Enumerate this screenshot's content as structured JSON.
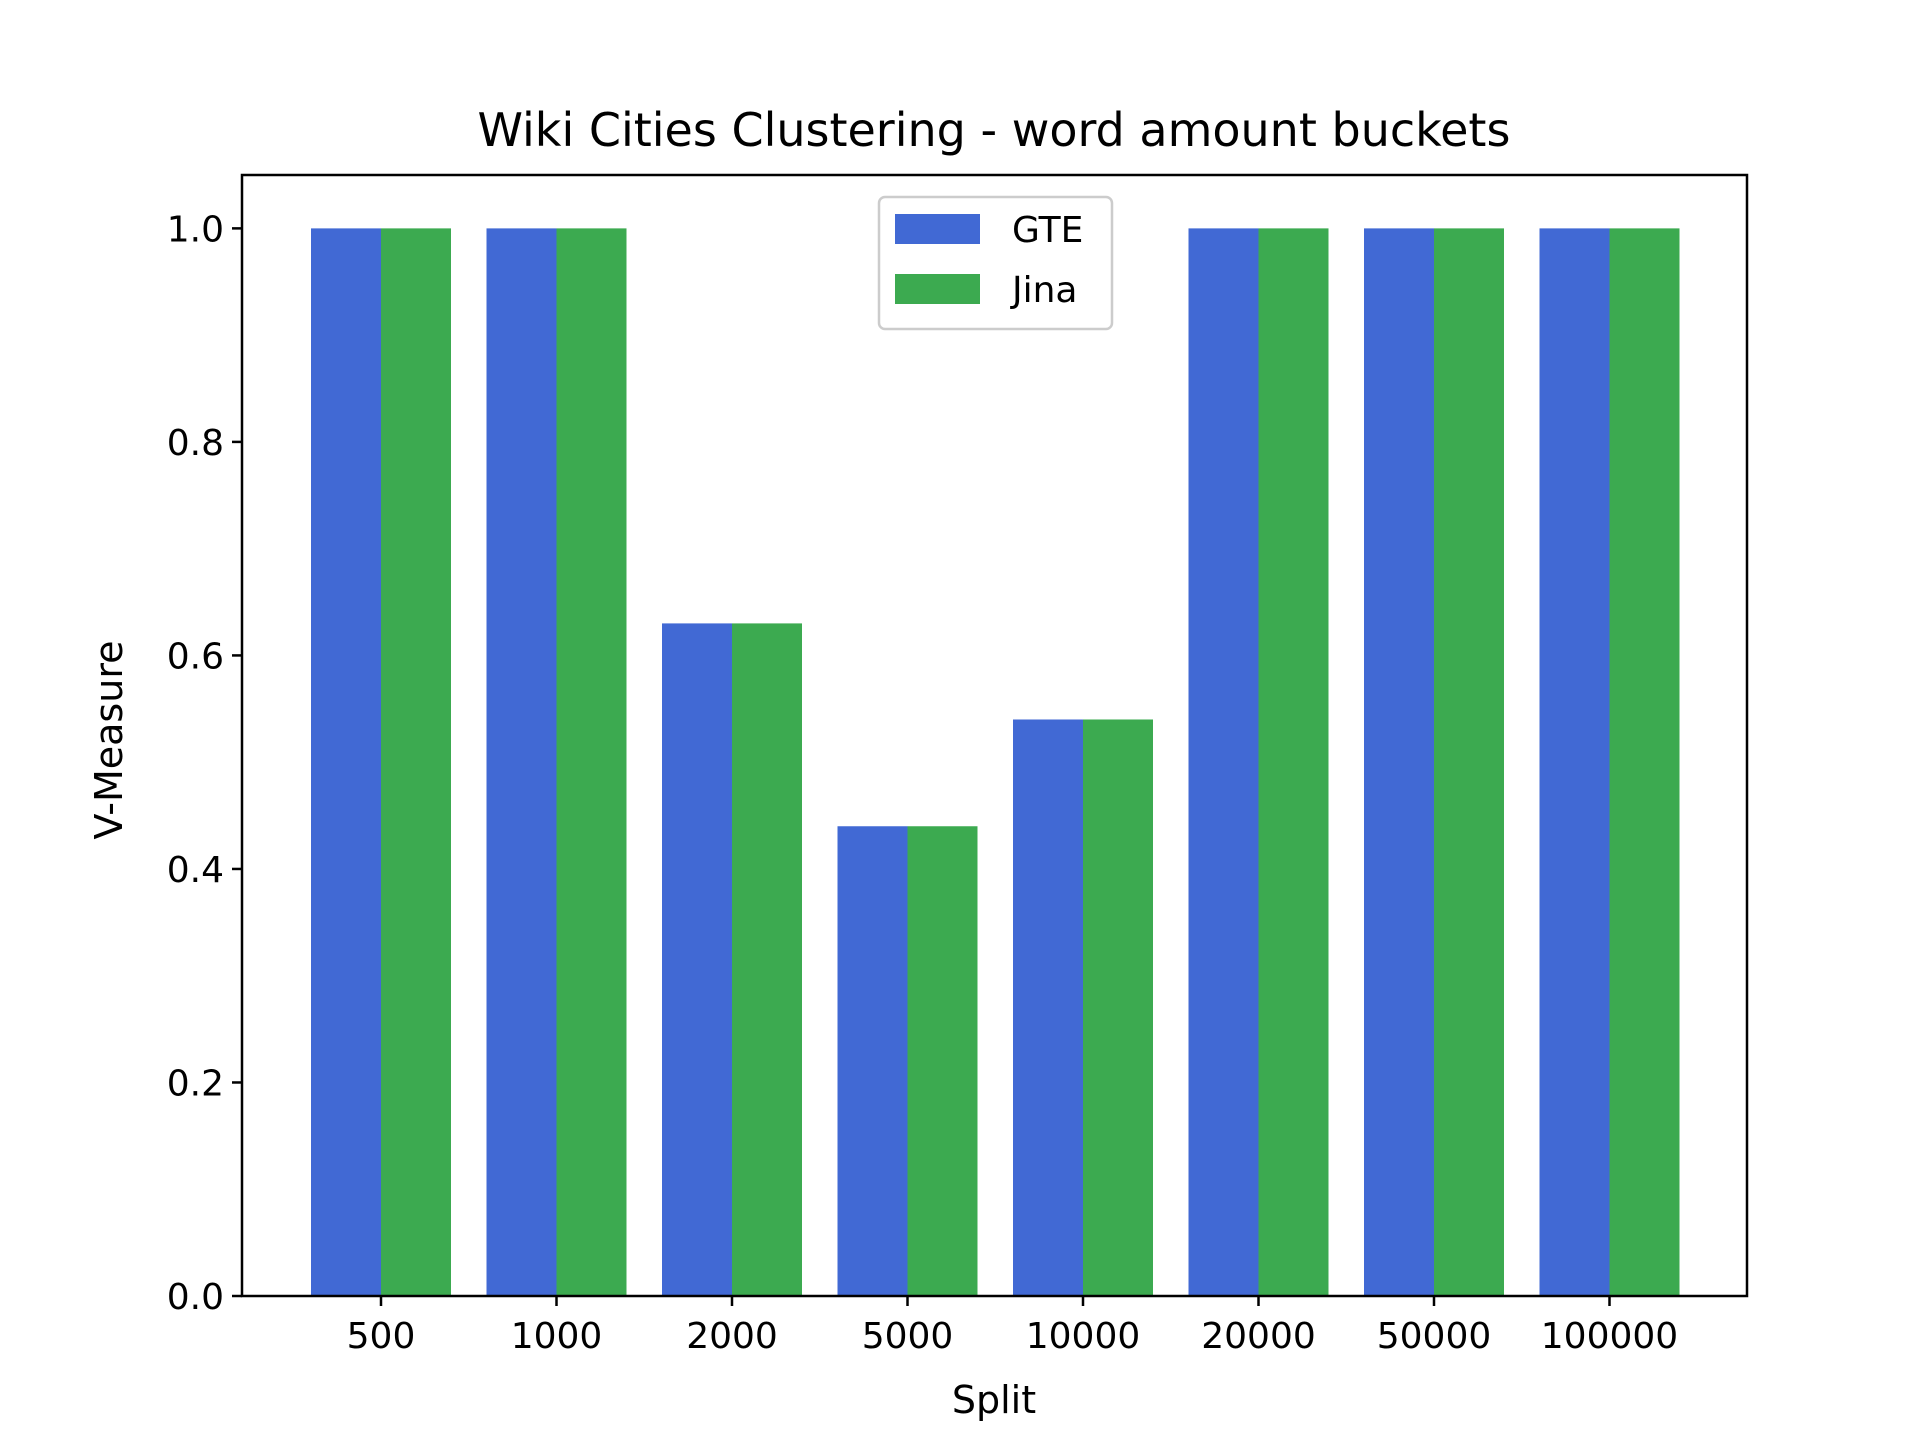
{
  "chart_data": {
    "type": "bar",
    "title": "Wiki Cities Clustering - word amount buckets",
    "xlabel": "Split",
    "ylabel": "V-Measure",
    "categories": [
      "500",
      "1000",
      "2000",
      "5000",
      "10000",
      "20000",
      "50000",
      "100000"
    ],
    "series": [
      {
        "name": "GTE",
        "color": "#4169d4",
        "values": [
          1.0,
          1.0,
          0.63,
          0.44,
          0.54,
          1.0,
          1.0,
          1.0
        ]
      },
      {
        "name": "Jina",
        "color": "#3caa50",
        "values": [
          1.0,
          1.0,
          0.63,
          0.44,
          0.54,
          1.0,
          1.0,
          1.0
        ]
      }
    ],
    "ylim": [
      0,
      1.05
    ],
    "yticks": [
      0.0,
      0.2,
      0.4,
      0.6,
      0.8,
      1.0
    ],
    "ytick_labels": [
      "0.0",
      "0.2",
      "0.4",
      "0.6",
      "0.8",
      "1.0"
    ],
    "grid": false,
    "legend_position": "top-center"
  }
}
